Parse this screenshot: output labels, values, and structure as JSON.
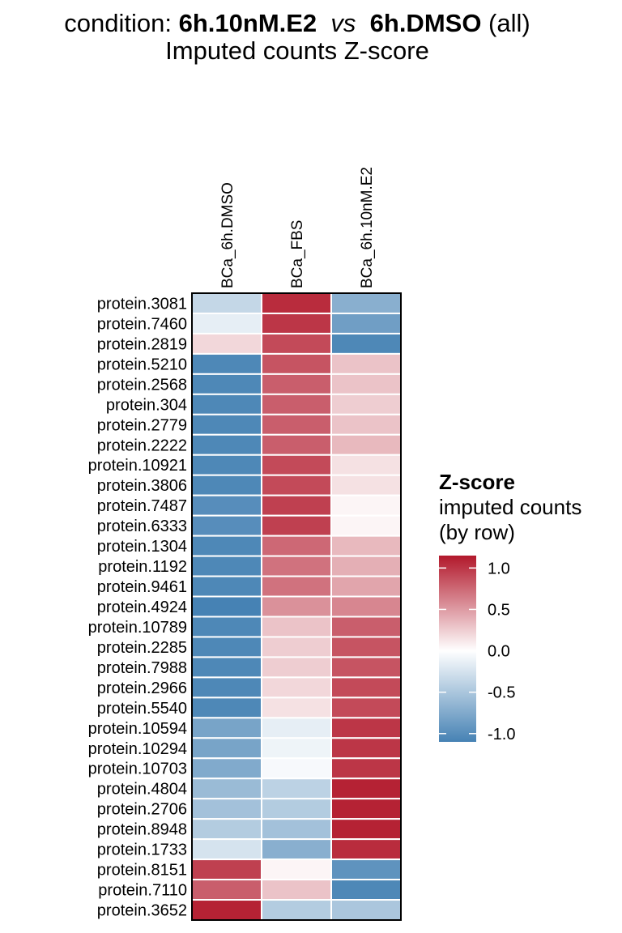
{
  "title": {
    "prefix": "condition: ",
    "group_a": "6h.10nM.E2",
    "vs": "vs",
    "group_b": "6h.DMSO",
    "suffix": " (all)"
  },
  "subtitle": "Imputed counts Z-score",
  "legend": {
    "title": "Z-score",
    "line2": "imputed counts",
    "line3": "(by row)",
    "ticks": [
      "1.0",
      "0.5",
      "0.0",
      "-0.5",
      "-1.0"
    ],
    "tick_values": [
      1.0,
      0.5,
      0.0,
      -0.5,
      -1.0
    ],
    "range": [
      -1.1,
      1.15
    ]
  },
  "colors": {
    "low": "#4682b4",
    "mid": "#ffffff",
    "high": "#b2182b"
  },
  "chart_data": {
    "type": "heatmap",
    "columns": [
      "BCa_6h.DMSO",
      "BCa_FBS",
      "BCa_6h.10nM.E2"
    ],
    "rows": [
      "protein.3081",
      "protein.7460",
      "protein.2819",
      "protein.5210",
      "protein.2568",
      "protein.304",
      "protein.2779",
      "protein.2222",
      "protein.10921",
      "protein.3806",
      "protein.7487",
      "protein.6333",
      "protein.1304",
      "protein.1192",
      "protein.9461",
      "protein.4924",
      "protein.10789",
      "protein.2285",
      "protein.7988",
      "protein.2966",
      "protein.5540",
      "protein.10594",
      "protein.10294",
      "protein.10703",
      "protein.4804",
      "protein.2706",
      "protein.8948",
      "protein.1733",
      "protein.8151",
      "protein.7110",
      "protein.3652"
    ],
    "values": [
      [
        -0.35,
        1.05,
        -0.7
      ],
      [
        -0.15,
        1.0,
        -0.85
      ],
      [
        0.2,
        0.9,
        -1.05
      ],
      [
        -1.05,
        0.85,
        0.3
      ],
      [
        -1.05,
        0.8,
        0.3
      ],
      [
        -1.05,
        0.8,
        0.25
      ],
      [
        -1.05,
        0.8,
        0.3
      ],
      [
        -1.05,
        0.8,
        0.35
      ],
      [
        -1.05,
        0.9,
        0.15
      ],
      [
        -1.05,
        0.9,
        0.15
      ],
      [
        -1.0,
        0.95,
        0.05
      ],
      [
        -1.0,
        0.95,
        0.05
      ],
      [
        -1.05,
        0.75,
        0.35
      ],
      [
        -1.05,
        0.7,
        0.4
      ],
      [
        -1.05,
        0.7,
        0.45
      ],
      [
        -1.1,
        0.55,
        0.6
      ],
      [
        -1.05,
        0.3,
        0.8
      ],
      [
        -1.05,
        0.25,
        0.85
      ],
      [
        -1.05,
        0.25,
        0.85
      ],
      [
        -1.05,
        0.2,
        0.9
      ],
      [
        -1.05,
        0.15,
        0.9
      ],
      [
        -0.8,
        -0.15,
        1.0
      ],
      [
        -0.8,
        -0.1,
        1.0
      ],
      [
        -0.75,
        -0.05,
        1.0
      ],
      [
        -0.6,
        -0.4,
        1.1
      ],
      [
        -0.55,
        -0.45,
        1.1
      ],
      [
        -0.45,
        -0.55,
        1.1
      ],
      [
        -0.25,
        -0.7,
        1.05
      ],
      [
        0.95,
        0.05,
        -0.95
      ],
      [
        0.8,
        0.3,
        -1.05
      ],
      [
        1.1,
        -0.45,
        -0.5
      ]
    ]
  }
}
